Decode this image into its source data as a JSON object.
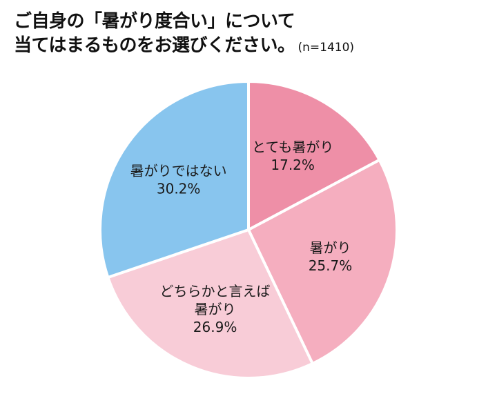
{
  "title": {
    "line1": "ご自身の「暑がり度合い」について",
    "line2": "当てはまるものをお選びください。",
    "note": "(n=1410)"
  },
  "chart_data": {
    "type": "pie",
    "title": "ご自身の「暑がり度合い」について 当てはまるものをお選びください。",
    "n": "(n=1410)",
    "slices": [
      {
        "label": [
          "とても暑がり"
        ],
        "value": 17.2,
        "value_label": "17.2%",
        "color": "#ee8fa7"
      },
      {
        "label": [
          "暑がり"
        ],
        "value": 25.7,
        "value_label": "25.7%",
        "color": "#f5aebf"
      },
      {
        "label": [
          "どちらかと言えば",
          "暑がり"
        ],
        "value": 26.9,
        "value_label": "26.9%",
        "color": "#f8ccd7"
      },
      {
        "label": [
          "暑がりではない"
        ],
        "value": 30.2,
        "value_label": "30.2%",
        "color": "#88c5ee"
      }
    ],
    "start": "12 o'clock",
    "direction": "clockwise",
    "legend": "none"
  }
}
